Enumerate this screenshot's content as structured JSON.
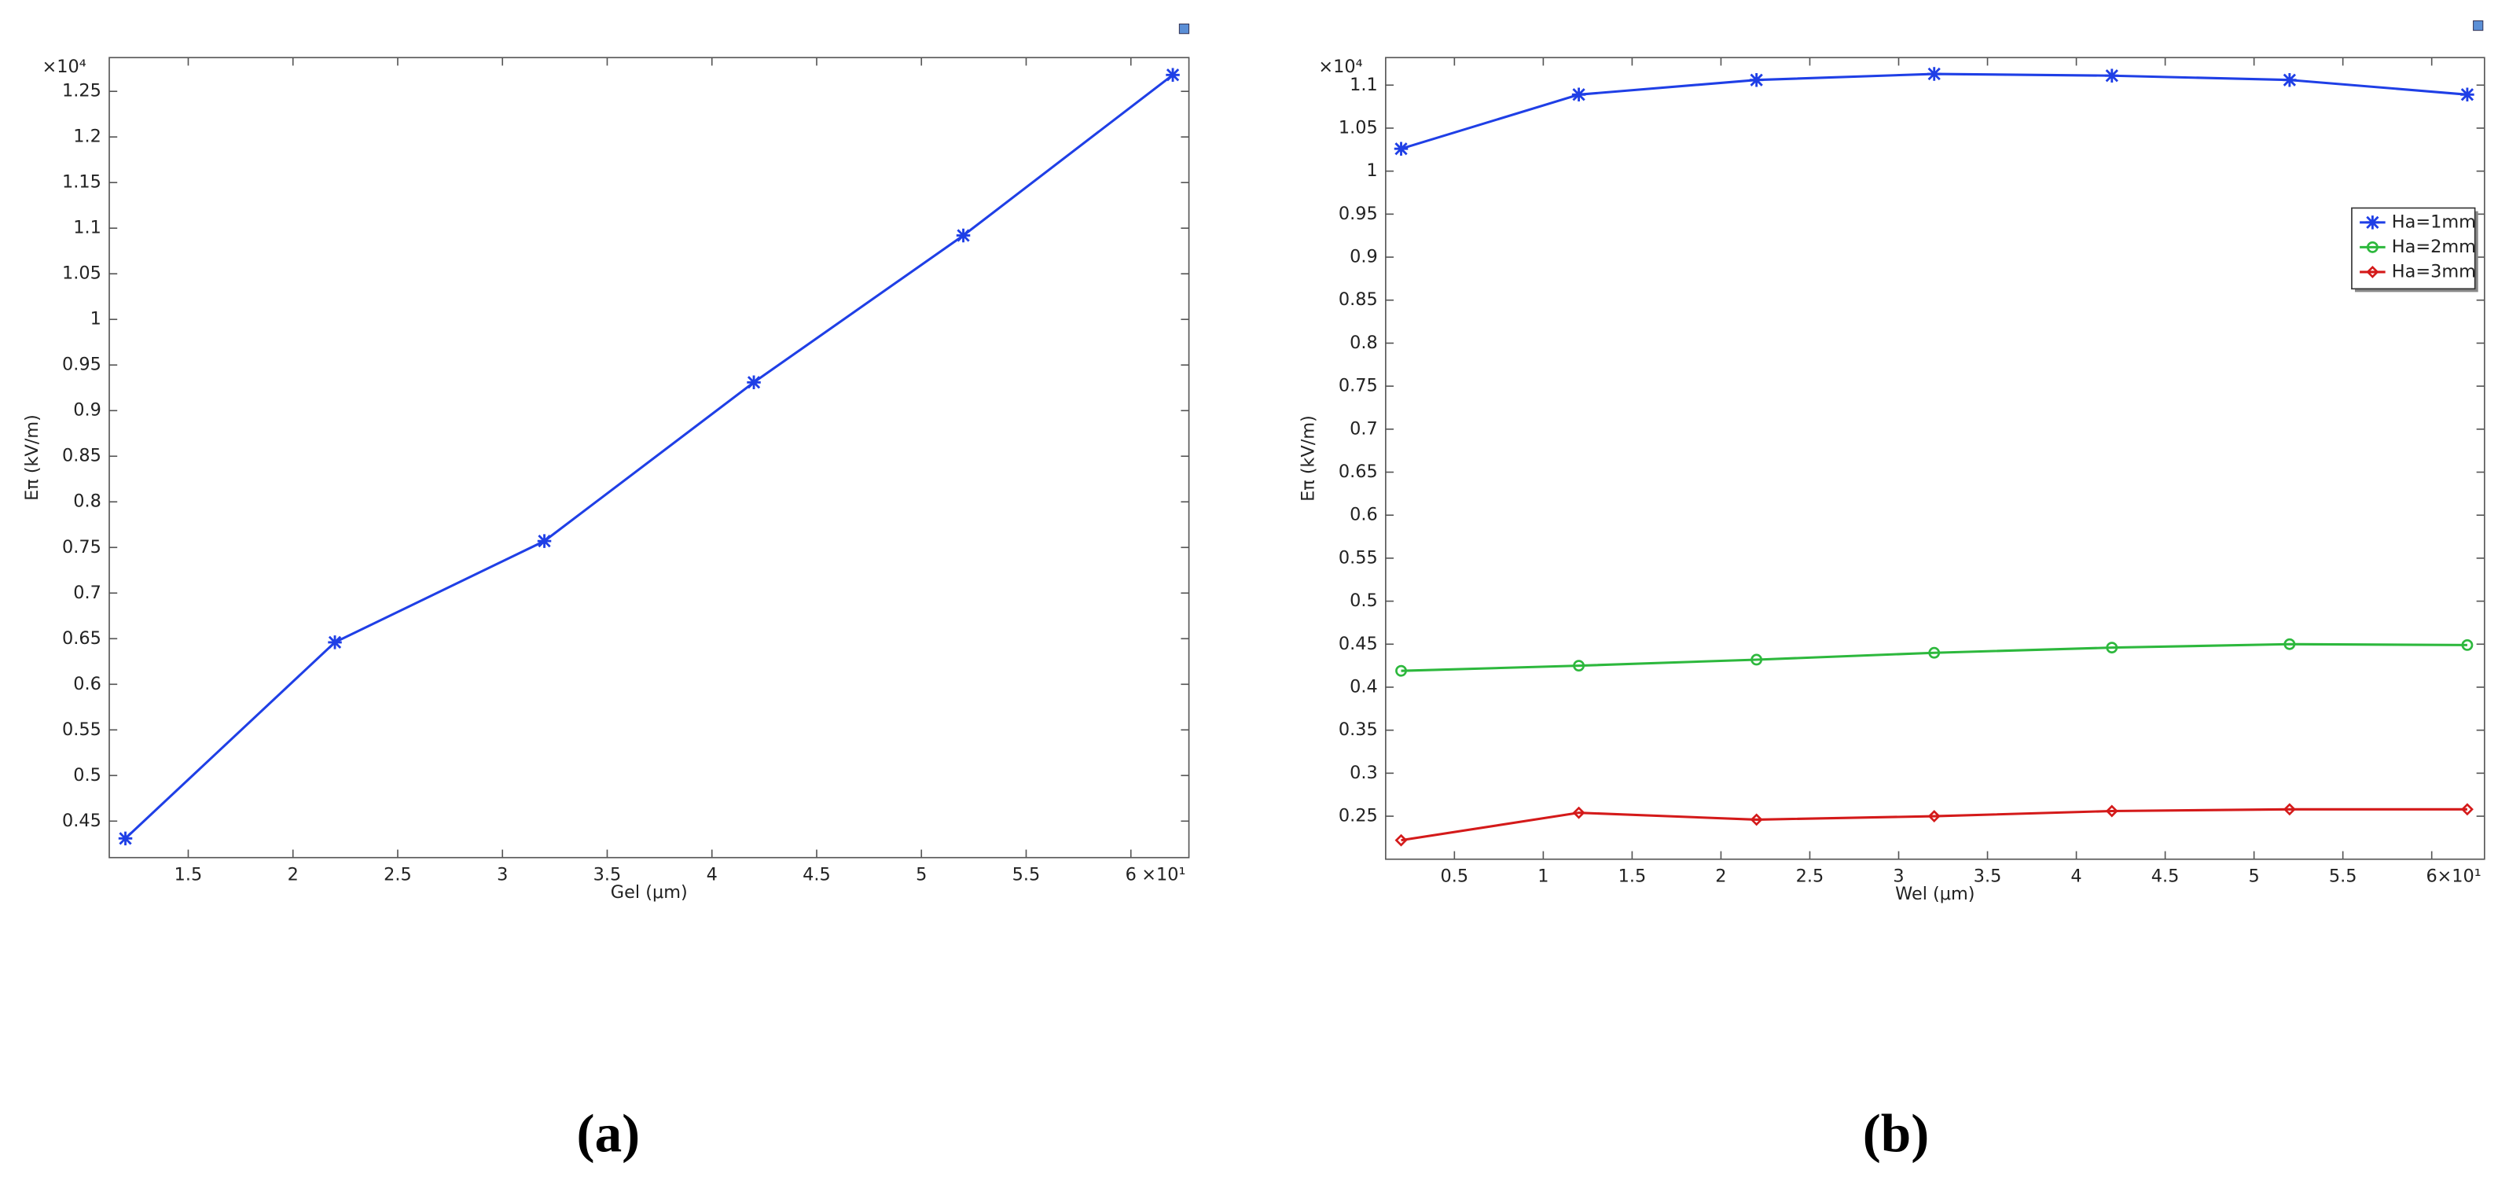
{
  "chart_data": [
    {
      "type": "line",
      "panel_label": "(a)",
      "x_label": "Gel (μm)",
      "y_label": "Eπ (kV/m)",
      "x_multiplier": "×10¹",
      "y_multiplier": "×10⁴",
      "x": [
        1.2,
        2.2,
        3.2,
        4.2,
        5.2,
        6.2
      ],
      "series": [
        {
          "color": "#1f3fe6",
          "marker": "star",
          "values": [
            0.431,
            0.646,
            0.757,
            0.931,
            1.092,
            1.268
          ]
        }
      ],
      "xlim": [
        1.123,
        6.277
      ],
      "xticks": [
        1.5,
        2,
        2.5,
        3,
        3.5,
        4,
        4.5,
        5,
        5.5,
        6
      ],
      "ylim": [
        0.41,
        1.287
      ],
      "yticks": [
        0.45,
        0.5,
        0.55,
        0.6,
        0.65,
        0.7,
        0.75,
        0.8,
        0.85,
        0.9,
        0.95,
        1,
        1.05,
        1.1,
        1.15,
        1.2,
        1.25
      ],
      "grid": false
    },
    {
      "type": "line",
      "panel_label": "(b)",
      "x_label": "Wel (μm)",
      "y_label": "Eπ (kV/m)",
      "x_multiplier": "×10¹",
      "y_multiplier": "×10⁴",
      "x": [
        0.2,
        1.2,
        2.2,
        3.2,
        4.2,
        5.2,
        6.2
      ],
      "series": [
        {
          "name": "Ha=1mm",
          "color": "#1f3fe6",
          "marker": "star",
          "values": [
            1.026,
            1.089,
            1.106,
            1.113,
            1.111,
            1.106,
            1.089
          ]
        },
        {
          "name": "Ha=2mm",
          "color": "#2db83d",
          "marker": "circle",
          "values": [
            0.419,
            0.425,
            0.432,
            0.44,
            0.446,
            0.45,
            0.449
          ]
        },
        {
          "name": "Ha=3mm",
          "color": "#d41a1a",
          "marker": "diamond",
          "values": [
            0.222,
            0.254,
            0.246,
            0.25,
            0.256,
            0.258,
            0.258
          ]
        }
      ],
      "xlim": [
        0.113,
        6.297
      ],
      "xticks": [
        0.5,
        1,
        1.5,
        2,
        2.5,
        3,
        3.5,
        4,
        4.5,
        5,
        5.5,
        6
      ],
      "ylim": [
        0.2,
        1.132
      ],
      "yticks": [
        0.25,
        0.3,
        0.35,
        0.4,
        0.45,
        0.5,
        0.55,
        0.6,
        0.65,
        0.7,
        0.75,
        0.8,
        0.85,
        0.9,
        0.95,
        1,
        1.05,
        1.1
      ],
      "grid": false,
      "legend": "upper right"
    }
  ]
}
